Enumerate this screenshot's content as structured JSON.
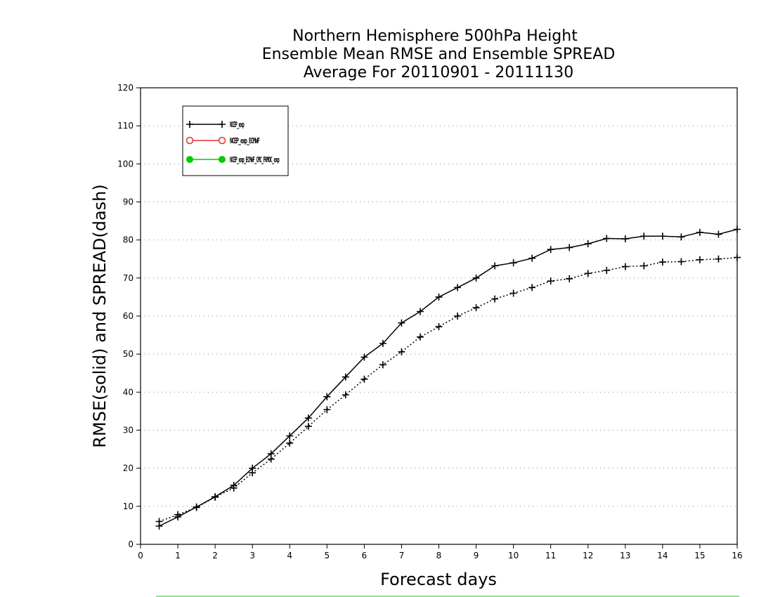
{
  "chart_data": {
    "type": "line",
    "title": [
      "Northern Hemisphere 500hPa Height",
      "Ensemble Mean RMSE and Ensemble SPREAD",
      "Average For 20110901 - 20111130"
    ],
    "xlabel": "Forecast days",
    "ylabel": "RMSE(solid) and SPREAD(dash)",
    "xlim": [
      0,
      16
    ],
    "ylim": [
      0,
      120
    ],
    "x_ticks": [
      0,
      1,
      2,
      3,
      4,
      5,
      6,
      7,
      8,
      9,
      10,
      11,
      12,
      13,
      14,
      15,
      16
    ],
    "y_ticks": [
      0,
      10,
      20,
      30,
      40,
      50,
      60,
      70,
      80,
      90,
      100,
      110,
      120
    ],
    "grid": "horizontal dotted",
    "legend_position": "top-left",
    "legend": [
      {
        "label": "NCEP_exp",
        "color": "#000000",
        "marker": "plus"
      },
      {
        "label": "NCEP_exp_ECMWF",
        "color": "#e03030",
        "marker": "open-circle"
      },
      {
        "label": "NCEP_exp_ECMWF_CMC_FNMOC_exp",
        "color": "#00cc00",
        "marker": "filled-circle"
      }
    ],
    "x": [
      0.5,
      1.0,
      1.5,
      2.0,
      2.5,
      3.0,
      3.5,
      4.0,
      4.5,
      5.0,
      5.5,
      6.0,
      6.5,
      7.0,
      7.5,
      8.0,
      8.5,
      9.0,
      9.5,
      10.0,
      10.5,
      11.0,
      11.5,
      12.0,
      12.5,
      13.0,
      13.5,
      14.0,
      14.5,
      15.0,
      15.5,
      16.0
    ],
    "series": [
      {
        "name": "RMSE",
        "style": "solid",
        "color": "#000000",
        "values": [
          4.8,
          7.2,
          9.8,
          12.5,
          15.5,
          20.0,
          23.8,
          28.5,
          33.2,
          38.8,
          44.0,
          49.2,
          52.8,
          58.2,
          61.2,
          65.0,
          67.5,
          70.0,
          73.2,
          74.0,
          75.2,
          77.5,
          78.0,
          79.0,
          80.4,
          80.3,
          81.0,
          81.0,
          80.8,
          82.0,
          81.5,
          82.8
        ]
      },
      {
        "name": "SPREAD",
        "style": "dotted",
        "color": "#000000",
        "values": [
          6.0,
          7.8,
          9.7,
          12.4,
          14.8,
          18.8,
          22.4,
          26.6,
          31.0,
          35.4,
          39.3,
          43.4,
          47.2,
          50.6,
          54.5,
          57.2,
          60.0,
          62.2,
          64.5,
          66.0,
          67.5,
          69.2,
          69.8,
          71.2,
          72.0,
          73.0,
          73.2,
          74.2,
          74.3,
          74.8,
          75.0,
          75.4
        ]
      }
    ]
  }
}
